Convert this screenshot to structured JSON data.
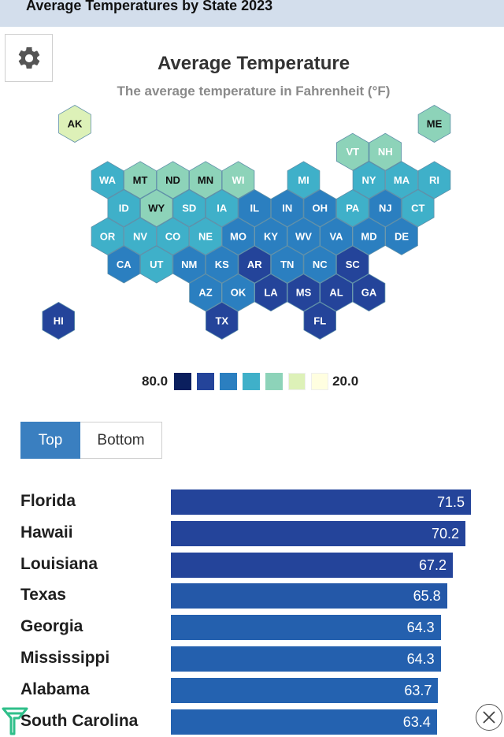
{
  "header": {
    "title": "Average Temperatures by State 2023"
  },
  "settings": {
    "icon": "gear-icon"
  },
  "chart_title": "Average Temperature",
  "chart_subtitle": "The average temperature in Fahrenheit (°F)",
  "legend": {
    "high_label": "80.0",
    "low_label": "20.0",
    "swatches": [
      "#0b1f5e",
      "#24449a",
      "#2b7fc0",
      "#3fb0c9",
      "#8dd3b9",
      "#ddf1b8",
      "#fffee0"
    ]
  },
  "toggle": {
    "top_label": "Top",
    "bottom_label": "Bottom",
    "active": "Top"
  },
  "states": [
    {
      "abbr": "AK",
      "row": 0,
      "col": 1,
      "color": "#ddf1b8"
    },
    {
      "abbr": "ME",
      "row": 0,
      "col": 12,
      "color": "#8dd3b9"
    },
    {
      "abbr": "VT",
      "row": 1,
      "col": 10,
      "color": "#8dd3b9"
    },
    {
      "abbr": "NH",
      "row": 1,
      "col": 11,
      "color": "#8dd3b9"
    },
    {
      "abbr": "WA",
      "row": 2,
      "col": 2,
      "color": "#3fb0c9"
    },
    {
      "abbr": "MT",
      "row": 2,
      "col": 3,
      "color": "#8dd3b9"
    },
    {
      "abbr": "ND",
      "row": 2,
      "col": 4,
      "color": "#8dd3b9"
    },
    {
      "abbr": "MN",
      "row": 2,
      "col": 5,
      "color": "#8dd3b9"
    },
    {
      "abbr": "WI",
      "row": 2,
      "col": 6,
      "color": "#8dd3b9"
    },
    {
      "abbr": "MI",
      "row": 2,
      "col": 8,
      "color": "#3fb0c9"
    },
    {
      "abbr": "NY",
      "row": 2,
      "col": 10,
      "color": "#3fb0c9"
    },
    {
      "abbr": "MA",
      "row": 2,
      "col": 11,
      "color": "#3fb0c9"
    },
    {
      "abbr": "RI",
      "row": 2,
      "col": 12,
      "color": "#3fb0c9"
    },
    {
      "abbr": "ID",
      "row": 3,
      "col": 3,
      "color": "#3fb0c9"
    },
    {
      "abbr": "WY",
      "row": 3,
      "col": 4,
      "color": "#8dd3b9"
    },
    {
      "abbr": "SD",
      "row": 3,
      "col": 5,
      "color": "#3fb0c9"
    },
    {
      "abbr": "IA",
      "row": 3,
      "col": 6,
      "color": "#3fb0c9"
    },
    {
      "abbr": "IL",
      "row": 3,
      "col": 7,
      "color": "#2b7fc0"
    },
    {
      "abbr": "IN",
      "row": 3,
      "col": 8,
      "color": "#2b7fc0"
    },
    {
      "abbr": "OH",
      "row": 3,
      "col": 9,
      "color": "#2b7fc0"
    },
    {
      "abbr": "PA",
      "row": 3,
      "col": 10,
      "color": "#3fb0c9"
    },
    {
      "abbr": "NJ",
      "row": 3,
      "col": 11,
      "color": "#2b7fc0"
    },
    {
      "abbr": "CT",
      "row": 3,
      "col": 12,
      "color": "#3fb0c9"
    },
    {
      "abbr": "OR",
      "row": 4,
      "col": 2,
      "color": "#3fb0c9"
    },
    {
      "abbr": "NV",
      "row": 4,
      "col": 3,
      "color": "#3fb0c9"
    },
    {
      "abbr": "CO",
      "row": 4,
      "col": 4,
      "color": "#3fb0c9"
    },
    {
      "abbr": "NE",
      "row": 4,
      "col": 5,
      "color": "#3fb0c9"
    },
    {
      "abbr": "MO",
      "row": 4,
      "col": 6,
      "color": "#2b7fc0"
    },
    {
      "abbr": "KY",
      "row": 4,
      "col": 7,
      "color": "#2b7fc0"
    },
    {
      "abbr": "WV",
      "row": 4,
      "col": 8,
      "color": "#2b7fc0"
    },
    {
      "abbr": "VA",
      "row": 4,
      "col": 9,
      "color": "#2b7fc0"
    },
    {
      "abbr": "MD",
      "row": 4,
      "col": 10,
      "color": "#2b7fc0"
    },
    {
      "abbr": "DE",
      "row": 4,
      "col": 11,
      "color": "#2b7fc0"
    },
    {
      "abbr": "CA",
      "row": 5,
      "col": 3,
      "color": "#2b7fc0"
    },
    {
      "abbr": "UT",
      "row": 5,
      "col": 4,
      "color": "#3fb0c9"
    },
    {
      "abbr": "NM",
      "row": 5,
      "col": 5,
      "color": "#2b7fc0"
    },
    {
      "abbr": "KS",
      "row": 5,
      "col": 6,
      "color": "#2b7fc0"
    },
    {
      "abbr": "AR",
      "row": 5,
      "col": 7,
      "color": "#24449a"
    },
    {
      "abbr": "TN",
      "row": 5,
      "col": 8,
      "color": "#2b7fc0"
    },
    {
      "abbr": "NC",
      "row": 5,
      "col": 9,
      "color": "#2b7fc0"
    },
    {
      "abbr": "SC",
      "row": 5,
      "col": 10,
      "color": "#24449a"
    },
    {
      "abbr": "AZ",
      "row": 6,
      "col": 5,
      "color": "#2b7fc0"
    },
    {
      "abbr": "OK",
      "row": 6,
      "col": 6,
      "color": "#2b7fc0"
    },
    {
      "abbr": "LA",
      "row": 6,
      "col": 7,
      "color": "#24449a"
    },
    {
      "abbr": "MS",
      "row": 6,
      "col": 8,
      "color": "#24449a"
    },
    {
      "abbr": "AL",
      "row": 6,
      "col": 9,
      "color": "#24449a"
    },
    {
      "abbr": "GA",
      "row": 6,
      "col": 10,
      "color": "#24449a"
    },
    {
      "abbr": "HI",
      "row": 7,
      "col": 1,
      "color": "#24449a"
    },
    {
      "abbr": "TX",
      "row": 7,
      "col": 6,
      "color": "#24449a"
    },
    {
      "abbr": "FL",
      "row": 7,
      "col": 9,
      "color": "#24449a"
    }
  ],
  "chart_data": {
    "type": "bar",
    "categories": [
      "Florida",
      "Hawaii",
      "Louisiana",
      "Texas",
      "Georgia",
      "Mississippi",
      "Alabama",
      "South Carolina"
    ],
    "values": [
      71.5,
      70.2,
      67.2,
      65.8,
      64.3,
      64.3,
      63.7,
      63.4
    ],
    "value_labels": [
      "71.5",
      "70.2",
      "67.2",
      "65.8",
      "64.3",
      "64.3",
      "63.7",
      "63.4"
    ],
    "colors": [
      "#24449a",
      "#24449a",
      "#24449a",
      "#2458a8",
      "#2460ae",
      "#2460ae",
      "#2462b0",
      "#2462b0"
    ]
  },
  "close": {
    "icon": "close-icon"
  },
  "brand": {
    "icon": "brand-logo-icon",
    "color": "#2fbf8a"
  }
}
